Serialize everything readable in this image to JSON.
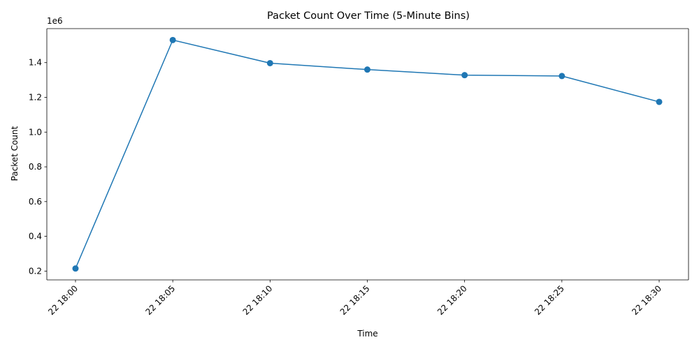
{
  "chart_data": {
    "type": "line",
    "title": "Packet Count Over Time (5-Minute Bins)",
    "xlabel": "Time",
    "ylabel": "Packet Count",
    "offset_label": "1e6",
    "categories": [
      "22 18:00",
      "22 18:05",
      "22 18:10",
      "22 18:15",
      "22 18:20",
      "22 18:25",
      "22 18:30"
    ],
    "series": [
      {
        "color": "#1f77b4",
        "values": [
          215000,
          1530000,
          1397000,
          1360000,
          1328000,
          1323000,
          1174000
        ]
      }
    ],
    "yticks": [
      "0.2",
      "0.4",
      "0.6",
      "0.8",
      "1.0",
      "1.2",
      "1.4"
    ],
    "ytick_values": [
      200000,
      400000,
      600000,
      800000,
      1000000,
      1200000,
      1400000
    ],
    "ylim": [
      149250,
      1595750
    ],
    "grid": false,
    "legend": false
  }
}
